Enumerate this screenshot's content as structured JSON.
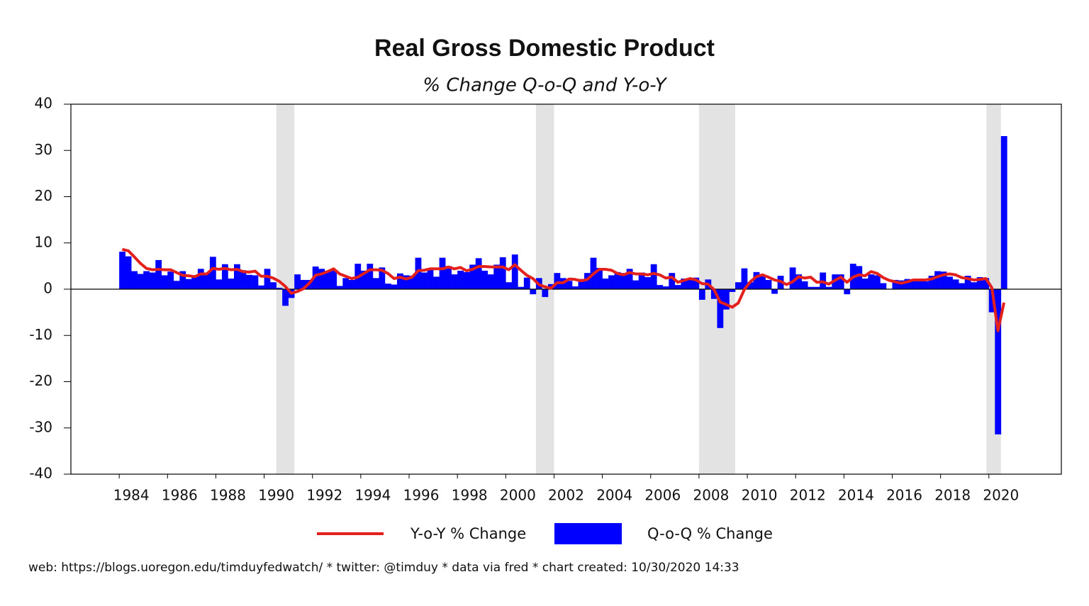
{
  "chart_data": {
    "type": "bar_line",
    "title": "Real Gross Domestic Product",
    "subtitle": "% Change Q-o-Q and Y-o-Y",
    "footer": "web: https://blogs.uoregon.edu/timduyfedwatch/ * twitter: @timduy * data via fred * chart created: 10/30/2020 14:33",
    "x": [
      1984,
      1984.25,
      1984.5,
      1984.75,
      1985,
      1985.25,
      1985.5,
      1985.75,
      1986,
      1986.25,
      1986.5,
      1986.75,
      1987,
      1987.25,
      1987.5,
      1987.75,
      1988,
      1988.25,
      1988.5,
      1988.75,
      1989,
      1989.25,
      1989.5,
      1989.75,
      1990,
      1990.25,
      1990.5,
      1990.75,
      1991,
      1991.25,
      1991.5,
      1991.75,
      1992,
      1992.25,
      1992.5,
      1992.75,
      1993,
      1993.25,
      1993.5,
      1993.75,
      1994,
      1994.25,
      1994.5,
      1994.75,
      1995,
      1995.25,
      1995.5,
      1995.75,
      1996,
      1996.25,
      1996.5,
      1996.75,
      1997,
      1997.25,
      1997.5,
      1997.75,
      1998,
      1998.25,
      1998.5,
      1998.75,
      1999,
      1999.25,
      1999.5,
      1999.75,
      2000,
      2000.25,
      2000.5,
      2000.75,
      2001,
      2001.25,
      2001.5,
      2001.75,
      2002,
      2002.25,
      2002.5,
      2002.75,
      2003,
      2003.25,
      2003.5,
      2003.75,
      2004,
      2004.25,
      2004.5,
      2004.75,
      2005,
      2005.25,
      2005.5,
      2005.75,
      2006,
      2006.25,
      2006.5,
      2006.75,
      2007,
      2007.25,
      2007.5,
      2007.75,
      2008,
      2008.25,
      2008.5,
      2008.75,
      2009,
      2009.25,
      2009.5,
      2009.75,
      2010,
      2010.25,
      2010.5,
      2010.75,
      2011,
      2011.25,
      2011.5,
      2011.75,
      2012,
      2012.25,
      2012.5,
      2012.75,
      2013,
      2013.25,
      2013.5,
      2013.75,
      2014,
      2014.25,
      2014.5,
      2014.75,
      2015,
      2015.25,
      2015.5,
      2015.75,
      2016,
      2016.25,
      2016.5,
      2016.75,
      2017,
      2017.25,
      2017.5,
      2017.75,
      2018,
      2018.25,
      2018.5,
      2018.75,
      2019,
      2019.25,
      2019.5,
      2019.75,
      2020,
      2020.25,
      2020.5
    ],
    "series": [
      {
        "name": "Y-o-Y % Change",
        "type": "line",
        "color": "#e3201c",
        "values": [
          8.6,
          8.3,
          7.0,
          5.6,
          4.5,
          4.2,
          4.3,
          4.2,
          4.2,
          3.6,
          3.0,
          2.9,
          2.7,
          3.3,
          3.3,
          4.5,
          4.3,
          4.5,
          4.2,
          4.3,
          3.8,
          3.7,
          3.9,
          2.8,
          2.8,
          2.4,
          1.7,
          0.6,
          -0.9,
          -0.5,
          0.1,
          1.3,
          3.0,
          3.3,
          3.8,
          4.4,
          3.3,
          2.8,
          2.3,
          2.6,
          3.4,
          4.2,
          4.2,
          4.1,
          3.4,
          2.3,
          2.6,
          2.2,
          2.6,
          4.0,
          4.1,
          4.4,
          4.4,
          4.4,
          4.8,
          4.4,
          4.7,
          4.0,
          4.3,
          4.9,
          4.9,
          4.8,
          4.8,
          4.8,
          4.2,
          5.3,
          4.1,
          3.0,
          2.3,
          1.0,
          0.5,
          0.2,
          1.4,
          1.4,
          2.2,
          2.1,
          1.8,
          2.1,
          3.3,
          4.3,
          4.3,
          4.1,
          3.4,
          3.1,
          3.6,
          3.3,
          3.3,
          3.1,
          3.4,
          3.1,
          2.4,
          2.6,
          1.5,
          1.9,
          2.3,
          2.0,
          1.2,
          1.1,
          -0.1,
          -2.8,
          -3.3,
          -3.9,
          -3.0,
          -0.1,
          1.6,
          2.7,
          3.1,
          2.6,
          2.0,
          1.7,
          1.0,
          1.6,
          2.7,
          2.4,
          2.6,
          1.5,
          1.6,
          1.1,
          1.9,
          2.6,
          1.5,
          2.6,
          3.1,
          2.9,
          3.8,
          3.4,
          2.5,
          1.9,
          1.6,
          1.3,
          1.6,
          2.0,
          2.0,
          2.0,
          2.2,
          2.7,
          3.1,
          3.3,
          3.1,
          2.5,
          2.3,
          2.0,
          2.1,
          2.3,
          0.3,
          -9.0,
          -2.9
        ]
      },
      {
        "name": "Q-o-Q % Change",
        "type": "bar",
        "color": "#0000ff",
        "values": [
          8.1,
          7.1,
          3.9,
          3.3,
          3.9,
          3.6,
          6.3,
          3.0,
          3.8,
          1.8,
          3.9,
          2.2,
          3.0,
          4.4,
          3.5,
          7.0,
          2.1,
          5.4,
          2.3,
          5.4,
          4.1,
          3.1,
          3.0,
          0.8,
          4.4,
          1.5,
          0.3,
          -3.6,
          -1.9,
          3.2,
          2.0,
          2.0,
          4.9,
          4.4,
          4.0,
          4.2,
          0.7,
          2.4,
          2.0,
          5.5,
          4.0,
          5.5,
          2.4,
          4.7,
          1.2,
          1.0,
          3.4,
          3.0,
          2.9,
          6.8,
          3.6,
          4.4,
          2.7,
          6.8,
          5.0,
          3.2,
          4.0,
          3.7,
          5.3,
          6.7,
          4.0,
          3.2,
          5.3,
          6.9,
          1.5,
          7.5,
          0.5,
          2.5,
          -1.1,
          2.4,
          -1.7,
          1.1,
          3.5,
          2.4,
          1.8,
          0.6,
          2.2,
          3.5,
          6.8,
          4.6,
          2.3,
          3.0,
          3.7,
          3.5,
          4.4,
          1.9,
          3.6,
          2.6,
          5.4,
          0.9,
          0.6,
          3.5,
          0.9,
          2.3,
          2.2,
          2.5,
          -2.3,
          2.1,
          -2.1,
          -8.4,
          -4.4,
          -0.6,
          1.5,
          4.5,
          1.5,
          3.7,
          3.0,
          2.0,
          -1.0,
          2.9,
          -0.1,
          4.7,
          3.2,
          1.7,
          0.5,
          0.5,
          3.6,
          0.5,
          3.2,
          3.2,
          -1.1,
          5.5,
          5.0,
          2.3,
          3.2,
          3.0,
          1.3,
          0.1,
          2.0,
          1.9,
          2.2,
          2.0,
          2.3,
          1.7,
          2.9,
          3.9,
          3.8,
          2.7,
          2.1,
          1.3,
          2.9,
          1.5,
          2.6,
          2.4,
          -5.0,
          -31.4,
          33.1
        ]
      }
    ],
    "recessions": [
      [
        1990.5,
        1991.25
      ],
      [
        2001.25,
        2002
      ],
      [
        2008,
        2009.5
      ],
      [
        2019.9,
        2020.5
      ]
    ],
    "recession_color": "#e3e3e3",
    "xlim": [
      1982,
      2023
    ],
    "xticks": [
      1984,
      1986,
      1988,
      1990,
      1992,
      1994,
      1996,
      1998,
      2000,
      2002,
      2004,
      2006,
      2008,
      2010,
      2012,
      2014,
      2016,
      2018,
      2020
    ],
    "ylim": [
      -40,
      40
    ],
    "yticks": [
      -40,
      -30,
      -20,
      -10,
      0,
      10,
      20,
      30,
      40
    ],
    "legend": "bottom"
  }
}
